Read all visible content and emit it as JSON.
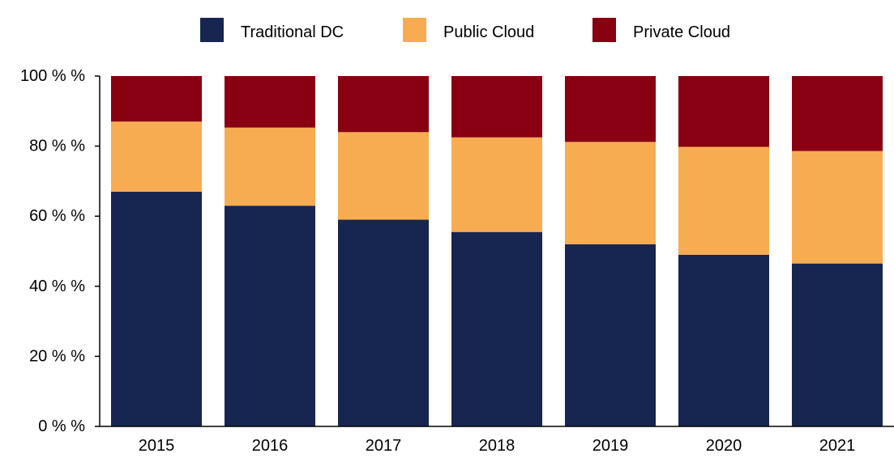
{
  "chart_data": {
    "type": "bar",
    "stacked": true,
    "categories": [
      "2015",
      "2016",
      "2017",
      "2018",
      "2019",
      "2020",
      "2021"
    ],
    "series": [
      {
        "name": "Traditional DC",
        "color": "#172650",
        "values": [
          67,
          63,
          59,
          55.5,
          52,
          49,
          46.5
        ]
      },
      {
        "name": "Public Cloud",
        "color": "#f8ac52",
        "values": [
          20,
          22.3,
          25,
          27,
          29.2,
          30.8,
          32.1
        ]
      },
      {
        "name": "Private Cloud",
        "color": "#880011",
        "values": [
          13,
          14.7,
          16,
          17.5,
          18.8,
          20.2,
          21.4
        ]
      }
    ],
    "yticks": [
      "0 % %",
      "20 % %",
      "40 % %",
      "60 % %",
      "80 % %",
      "100 % %"
    ],
    "ytick_values": [
      0,
      20,
      40,
      60,
      80,
      100
    ],
    "ylim": [
      0,
      100
    ],
    "title": "",
    "xlabel": "",
    "ylabel": "",
    "grid": false,
    "legend_position": "top-center"
  }
}
